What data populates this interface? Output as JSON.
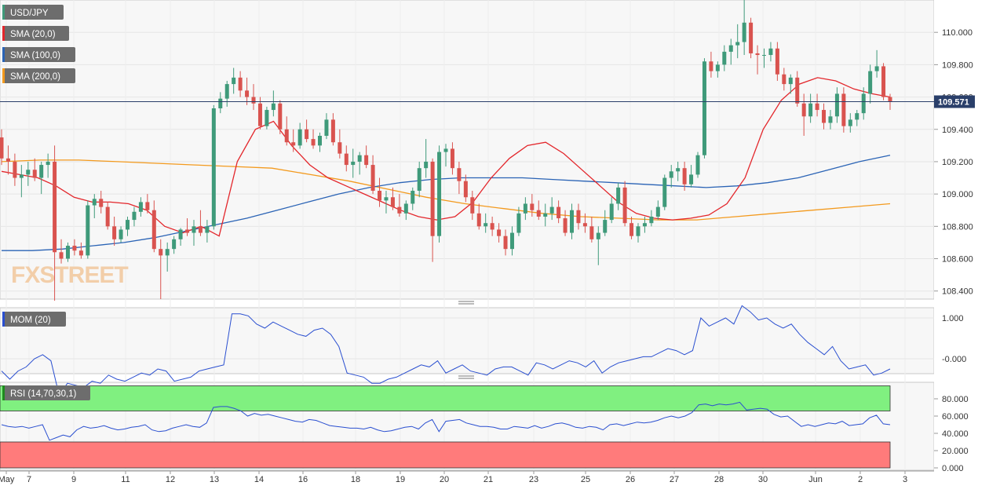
{
  "watermark": "FXSTREET",
  "current_price_label": "109.571",
  "colors": {
    "bull": "#3f9a7a",
    "bear": "#d9534f",
    "sma20": "#e3262b",
    "sma100": "#2a63b5",
    "sma200": "#f39a1e",
    "mom": "#2a4fd0",
    "rsi": "#2a4fd0",
    "rsi_overbought_zone": "#80f080",
    "rsi_oversold_zone": "#ff7b7b",
    "price_line": "#2a3f6a",
    "grid": "#e6e6e6",
    "panel_bg": "#f7f7f7"
  },
  "chart_data": [
    {
      "type": "candlestick",
      "title": "USD/JPY",
      "legend": [
        {
          "label": "USD/JPY",
          "color": "#3f9a7a"
        },
        {
          "label": "SMA (20,0)",
          "color": "#e3262b"
        },
        {
          "label": "SMA (100,0)",
          "color": "#2a63b5"
        },
        {
          "label": "SMA (200,0)",
          "color": "#f39a1e"
        }
      ],
      "y_ticks": [
        "110.000",
        "109.800",
        "109.600",
        "109.400",
        "109.200",
        "109.000",
        "108.800",
        "108.600",
        "108.400"
      ],
      "ylim": [
        108.35,
        110.2
      ],
      "current_price": 109.571,
      "x_ticks": [
        "May",
        "7",
        "9",
        "11",
        "12",
        "13",
        "14",
        "16",
        "18",
        "19",
        "20",
        "21",
        "23",
        "25",
        "26",
        "27",
        "28",
        "30",
        "Jun",
        "2",
        "3"
      ],
      "candles": [
        [
          109.35,
          109.4,
          109.18,
          109.22
        ],
        [
          109.22,
          109.3,
          109.12,
          109.2
        ],
        [
          109.2,
          109.25,
          109.05,
          109.1
        ],
        [
          109.1,
          109.18,
          108.98,
          109.12
        ],
        [
          109.12,
          109.2,
          109.05,
          109.15
        ],
        [
          109.15,
          109.22,
          109.08,
          109.1
        ],
        [
          109.1,
          109.2,
          109.0,
          109.18
        ],
        [
          109.18,
          109.25,
          109.1,
          109.2
        ],
        [
          109.2,
          109.3,
          108.34,
          108.64
        ],
        [
          108.64,
          108.72,
          108.57,
          108.6
        ],
        [
          108.6,
          108.7,
          108.58,
          108.68
        ],
        [
          108.68,
          108.72,
          108.62,
          108.65
        ],
        [
          108.65,
          108.7,
          108.6,
          108.62
        ],
        [
          108.62,
          108.96,
          108.6,
          108.93
        ],
        [
          108.93,
          109.0,
          108.85,
          108.97
        ],
        [
          108.97,
          109.02,
          108.88,
          108.92
        ],
        [
          108.92,
          108.95,
          108.78,
          108.8
        ],
        [
          108.8,
          108.86,
          108.68,
          108.72
        ],
        [
          108.72,
          108.8,
          108.7,
          108.78
        ],
        [
          108.78,
          108.86,
          108.74,
          108.84
        ],
        [
          108.84,
          108.92,
          108.8,
          108.89
        ],
        [
          108.89,
          108.98,
          108.86,
          108.95
        ],
        [
          108.95,
          109.0,
          108.88,
          108.9
        ],
        [
          108.9,
          108.96,
          108.64,
          108.66
        ],
        [
          108.66,
          108.72,
          108.35,
          108.62
        ],
        [
          108.62,
          108.7,
          108.52,
          108.66
        ],
        [
          108.66,
          108.74,
          108.63,
          108.72
        ],
        [
          108.72,
          108.79,
          108.68,
          108.78
        ],
        [
          108.78,
          108.85,
          108.74,
          108.76
        ],
        [
          108.76,
          108.84,
          108.68,
          108.8
        ],
        [
          108.8,
          108.9,
          108.74,
          108.76
        ],
        [
          108.76,
          108.84,
          108.7,
          108.8
        ],
        [
          108.8,
          109.55,
          108.78,
          109.53
        ],
        [
          109.53,
          109.63,
          109.5,
          109.59
        ],
        [
          109.59,
          109.7,
          109.54,
          109.68
        ],
        [
          109.68,
          109.78,
          109.62,
          109.72
        ],
        [
          109.72,
          109.76,
          109.6,
          109.64
        ],
        [
          109.64,
          109.72,
          109.55,
          109.6
        ],
        [
          109.6,
          109.68,
          109.52,
          109.56
        ],
        [
          109.56,
          109.6,
          109.4,
          109.42
        ],
        [
          109.42,
          109.54,
          109.4,
          109.52
        ],
        [
          109.52,
          109.64,
          109.48,
          109.56
        ],
        [
          109.56,
          109.58,
          109.37,
          109.4
        ],
        [
          109.4,
          109.48,
          109.3,
          109.32
        ],
        [
          109.32,
          109.4,
          109.26,
          109.3
        ],
        [
          109.3,
          109.44,
          109.28,
          109.4
        ],
        [
          109.4,
          109.46,
          109.32,
          109.34
        ],
        [
          109.34,
          109.4,
          109.28,
          109.3
        ],
        [
          109.3,
          109.38,
          109.26,
          109.36
        ],
        [
          109.36,
          109.5,
          109.34,
          109.46
        ],
        [
          109.46,
          109.5,
          109.3,
          109.32
        ],
        [
          109.32,
          109.4,
          109.22,
          109.25
        ],
        [
          109.25,
          109.3,
          109.14,
          109.18
        ],
        [
          109.18,
          109.28,
          109.1,
          109.2
        ],
        [
          109.2,
          109.26,
          109.12,
          109.24
        ],
        [
          109.24,
          109.3,
          109.16,
          109.18
        ],
        [
          109.18,
          109.24,
          109.0,
          109.02
        ],
        [
          109.02,
          109.1,
          108.92,
          108.96
        ],
        [
          108.96,
          109.02,
          108.88,
          108.98
        ],
        [
          108.98,
          109.04,
          108.9,
          108.92
        ],
        [
          108.92,
          109.0,
          108.86,
          108.88
        ],
        [
          108.88,
          108.96,
          108.84,
          108.94
        ],
        [
          108.94,
          109.04,
          108.9,
          109.02
        ],
        [
          109.02,
          109.2,
          108.98,
          109.16
        ],
        [
          109.16,
          109.34,
          109.1,
          109.2
        ],
        [
          109.2,
          109.22,
          108.58,
          108.74
        ],
        [
          108.74,
          109.3,
          108.7,
          109.26
        ],
        [
          109.26,
          109.31,
          109.17,
          109.28
        ],
        [
          109.28,
          109.32,
          109.12,
          109.16
        ],
        [
          109.16,
          109.2,
          109.0,
          109.08
        ],
        [
          109.08,
          109.12,
          108.95,
          108.98
        ],
        [
          108.98,
          109.02,
          108.84,
          108.88
        ],
        [
          108.88,
          108.94,
          108.78,
          108.8
        ],
        [
          108.8,
          108.88,
          108.76,
          108.82
        ],
        [
          108.82,
          108.86,
          108.74,
          108.78
        ],
        [
          108.78,
          108.82,
          108.7,
          108.74
        ],
        [
          108.74,
          108.78,
          108.62,
          108.66
        ],
        [
          108.66,
          108.8,
          108.62,
          108.76
        ],
        [
          108.76,
          108.92,
          108.74,
          108.88
        ],
        [
          108.88,
          108.98,
          108.84,
          108.94
        ],
        [
          108.94,
          109.0,
          108.86,
          108.9
        ],
        [
          108.9,
          108.96,
          108.84,
          108.86
        ],
        [
          108.86,
          108.94,
          108.8,
          108.88
        ],
        [
          108.88,
          108.98,
          108.84,
          108.92
        ],
        [
          108.92,
          108.96,
          108.82,
          108.85
        ],
        [
          108.85,
          108.9,
          108.74,
          108.76
        ],
        [
          108.76,
          108.94,
          108.72,
          108.9
        ],
        [
          108.9,
          108.94,
          108.78,
          108.82
        ],
        [
          108.82,
          108.88,
          108.76,
          108.8
        ],
        [
          108.8,
          108.86,
          108.7,
          108.72
        ],
        [
          108.72,
          108.8,
          108.56,
          108.76
        ],
        [
          108.76,
          108.9,
          108.74,
          108.84
        ],
        [
          108.84,
          108.98,
          108.82,
          108.94
        ],
        [
          108.94,
          109.07,
          108.9,
          109.04
        ],
        [
          109.04,
          109.08,
          108.8,
          108.82
        ],
        [
          108.82,
          108.86,
          108.72,
          108.74
        ],
        [
          108.74,
          108.82,
          108.7,
          108.8
        ],
        [
          108.8,
          108.86,
          108.76,
          108.82
        ],
        [
          108.82,
          108.9,
          108.8,
          108.86
        ],
        [
          108.86,
          108.96,
          108.84,
          108.92
        ],
        [
          108.92,
          109.12,
          108.9,
          109.1
        ],
        [
          109.1,
          109.18,
          109.04,
          109.14
        ],
        [
          109.14,
          109.2,
          109.08,
          109.16
        ],
        [
          109.16,
          109.2,
          109.02,
          109.06
        ],
        [
          109.06,
          109.18,
          109.04,
          109.12
        ],
        [
          109.12,
          109.26,
          109.1,
          109.24
        ],
        [
          109.24,
          109.84,
          109.22,
          109.82
        ],
        [
          109.82,
          109.88,
          109.72,
          109.76
        ],
        [
          109.76,
          109.82,
          109.72,
          109.8
        ],
        [
          109.8,
          109.92,
          109.76,
          109.88
        ],
        [
          109.88,
          109.96,
          109.8,
          109.92
        ],
        [
          109.92,
          110.05,
          109.84,
          109.94
        ],
        [
          109.94,
          110.2,
          109.86,
          110.06
        ],
        [
          110.06,
          110.09,
          109.84,
          109.87
        ],
        [
          109.87,
          109.92,
          109.74,
          109.86
        ],
        [
          109.86,
          109.9,
          109.78,
          109.86
        ],
        [
          109.86,
          109.94,
          109.82,
          109.9
        ],
        [
          109.9,
          109.94,
          109.7,
          109.74
        ],
        [
          109.74,
          109.78,
          109.64,
          109.68
        ],
        [
          109.68,
          109.74,
          109.62,
          109.72
        ],
        [
          109.72,
          109.76,
          109.54,
          109.56
        ],
        [
          109.56,
          109.62,
          109.36,
          109.48
        ],
        [
          109.48,
          109.62,
          109.44,
          109.56
        ],
        [
          109.56,
          109.62,
          109.48,
          109.52
        ],
        [
          109.52,
          109.56,
          109.4,
          109.44
        ],
        [
          109.44,
          109.52,
          109.4,
          109.48
        ],
        [
          109.48,
          109.66,
          109.44,
          109.62
        ],
        [
          109.62,
          109.66,
          109.38,
          109.42
        ],
        [
          109.42,
          109.5,
          109.38,
          109.46
        ],
        [
          109.46,
          109.52,
          109.42,
          109.5
        ],
        [
          109.5,
          109.66,
          109.46,
          109.62
        ],
        [
          109.62,
          109.8,
          109.56,
          109.76
        ],
        [
          109.76,
          109.89,
          109.72,
          109.79
        ],
        [
          109.79,
          109.81,
          109.58,
          109.6
        ],
        [
          109.6,
          109.62,
          109.52,
          109.571
        ]
      ],
      "sma20": [
        109.14,
        109.12,
        109.1,
        109.05,
        108.98,
        108.95,
        108.95,
        108.94,
        108.9,
        108.8,
        108.76,
        108.8,
        108.74,
        109.2,
        109.4,
        109.45,
        109.3,
        109.18,
        109.1,
        109.05,
        109.0,
        108.95,
        108.9,
        108.86,
        108.84,
        108.86,
        108.95,
        109.1,
        109.22,
        109.3,
        109.32,
        109.25,
        109.15,
        109.05,
        108.95,
        108.88,
        108.85,
        108.84,
        108.85,
        108.87,
        108.94,
        109.1,
        109.4,
        109.58,
        109.68,
        109.72,
        109.7,
        109.65,
        109.62,
        109.6
      ],
      "sma100": [
        108.65,
        108.65,
        108.66,
        108.68,
        108.7,
        108.73,
        108.77,
        108.81,
        108.85,
        108.9,
        108.95,
        109.0,
        109.04,
        109.07,
        109.09,
        109.1,
        109.1,
        109.1,
        109.09,
        109.08,
        109.07,
        109.06,
        109.05,
        109.04,
        109.05,
        109.07,
        109.1,
        109.15,
        109.2,
        109.24
      ],
      "sma200": [
        109.2,
        109.21,
        109.21,
        109.2,
        109.19,
        109.18,
        109.17,
        109.16,
        109.12,
        109.08,
        109.03,
        108.98,
        108.94,
        108.91,
        108.88,
        108.86,
        108.85,
        108.84,
        108.84,
        108.86,
        108.88,
        108.9,
        108.92,
        108.94
      ]
    },
    {
      "type": "line",
      "title": "MOM (20)",
      "y_ticks": [
        "1.000",
        "-0.000"
      ],
      "values": [
        -0.3,
        -0.5,
        -0.3,
        -0.2,
        0.0,
        0.1,
        -0.05,
        -0.9,
        -0.6,
        -0.65,
        -0.7,
        -0.55,
        -0.6,
        -0.4,
        -0.5,
        -0.55,
        -0.45,
        -0.35,
        -0.4,
        -0.25,
        -0.3,
        -0.55,
        -0.5,
        -0.45,
        -0.3,
        -0.25,
        -0.2,
        -0.15,
        1.1,
        1.1,
        1.05,
        0.85,
        0.75,
        0.9,
        0.8,
        0.7,
        0.6,
        0.55,
        0.7,
        0.75,
        0.6,
        0.3,
        -0.35,
        -0.4,
        -0.45,
        -0.6,
        -0.6,
        -0.5,
        -0.45,
        -0.35,
        -0.25,
        -0.15,
        -0.2,
        -0.05,
        -0.35,
        -0.25,
        -0.15,
        -0.3,
        -0.35,
        -0.4,
        -0.25,
        -0.2,
        -0.2,
        -0.3,
        -0.4,
        -0.1,
        -0.15,
        -0.25,
        -0.15,
        -0.05,
        -0.1,
        -0.2,
        -0.05,
        -0.35,
        -0.2,
        -0.1,
        -0.05,
        0.0,
        0.05,
        0.05,
        0.15,
        0.25,
        0.2,
        0.1,
        0.2,
        1.0,
        0.8,
        0.9,
        1.0,
        0.85,
        1.3,
        1.15,
        0.95,
        1.0,
        0.85,
        0.75,
        0.85,
        0.6,
        0.4,
        0.25,
        0.1,
        0.3,
        -0.05,
        -0.25,
        -0.2,
        -0.15,
        -0.4,
        -0.35,
        -0.25
      ]
    },
    {
      "type": "line",
      "title": "RSI (14,70,30,1)",
      "y_ticks": [
        "80.000",
        "60.000",
        "40.000",
        "20.000",
        "0.000"
      ],
      "ylim": [
        0,
        95
      ],
      "overbought": 70,
      "oversold": 30,
      "values": [
        50,
        48,
        47,
        48,
        46,
        48,
        50,
        32,
        35,
        38,
        36,
        44,
        48,
        46,
        47,
        49,
        46,
        44,
        45,
        47,
        48,
        50,
        44,
        42,
        43,
        46,
        48,
        50,
        48,
        47,
        52,
        70,
        71,
        71,
        69,
        66,
        60,
        63,
        61,
        62,
        60,
        58,
        56,
        54,
        53,
        56,
        55,
        52,
        49,
        48,
        47,
        46,
        46,
        45,
        47,
        44,
        42,
        43,
        45,
        47,
        48,
        45,
        52,
        56,
        42,
        54,
        55,
        56,
        52,
        50,
        48,
        48,
        47,
        45,
        45,
        48,
        47,
        46,
        49,
        46,
        48,
        51,
        52,
        50,
        47,
        46,
        48,
        47,
        44,
        50,
        51,
        49,
        51,
        53,
        52,
        53,
        55,
        58,
        60,
        58,
        60,
        64,
        73,
        74,
        72,
        74,
        73,
        74,
        76,
        67,
        68,
        69,
        68,
        62,
        59,
        60,
        54,
        48,
        50,
        48,
        50,
        52,
        51,
        54,
        49,
        50,
        51,
        58,
        61,
        51,
        50
      ]
    }
  ]
}
